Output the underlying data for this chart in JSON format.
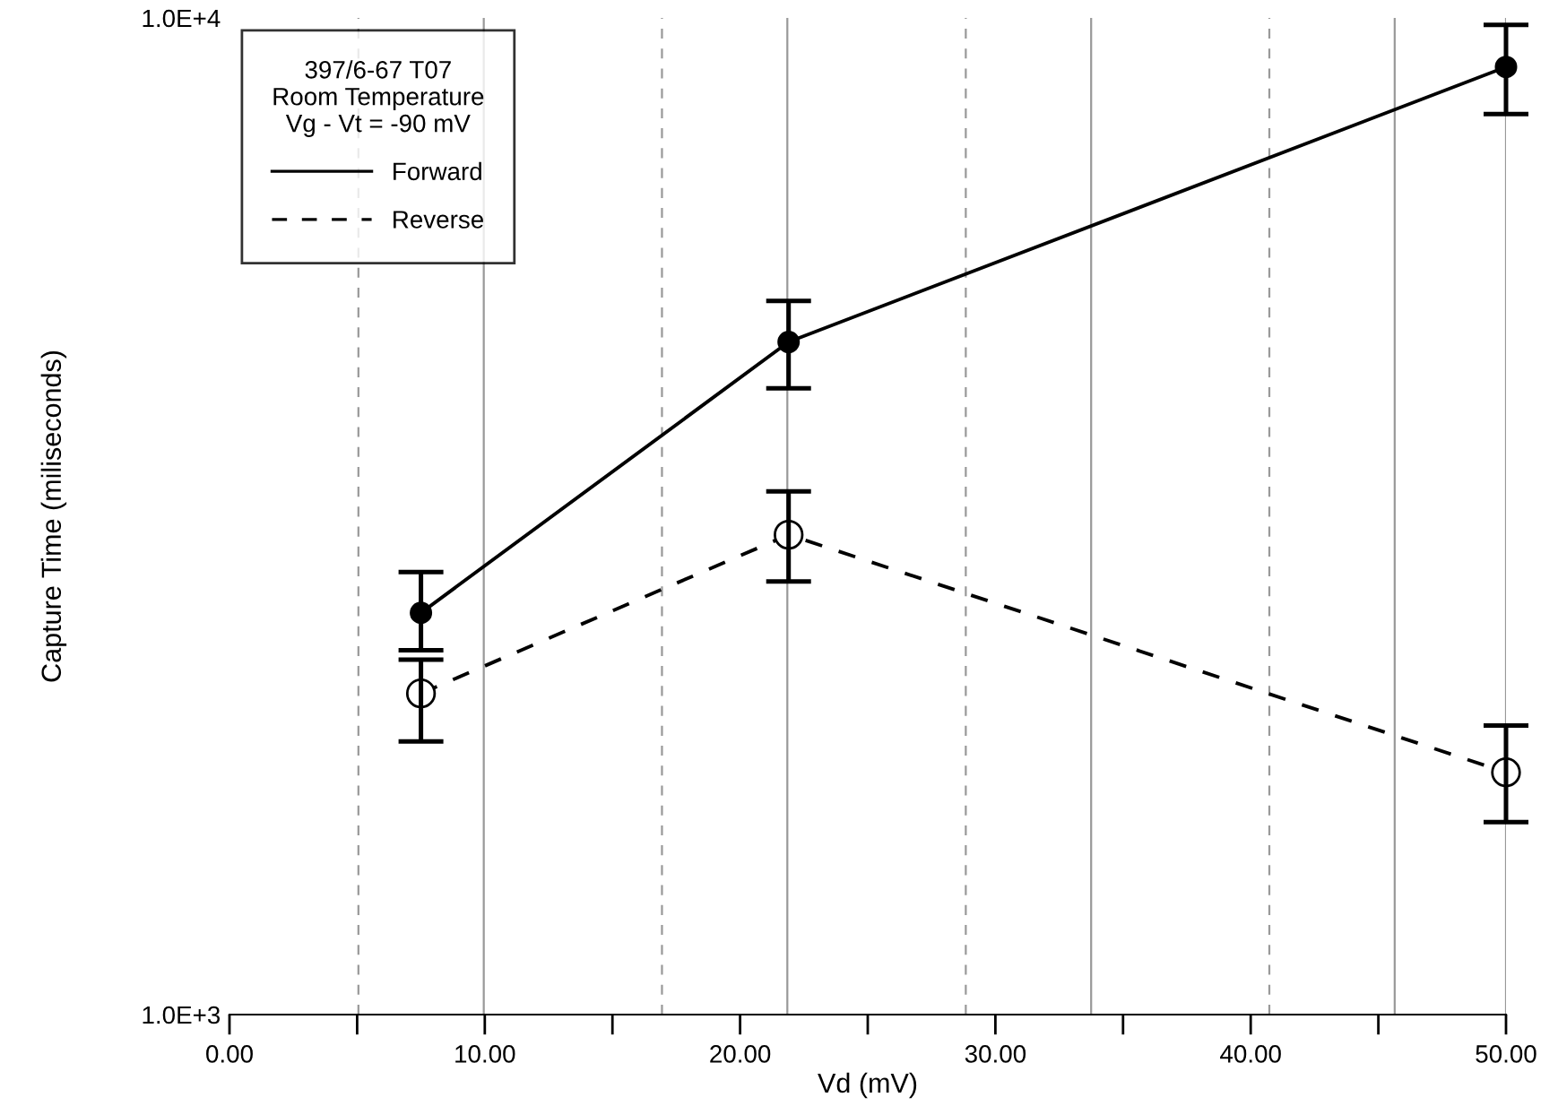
{
  "chart_data": {
    "type": "line",
    "xlabel": "Vd (mV)",
    "ylabel": "Capture Time (miliseconds)",
    "legend_title": "397/6-67 T07\nRoom Temperature\nVg - Vt = -90 mV",
    "legend": "top left",
    "log": "y",
    "marker": "circle",
    "x": [
      7.5,
      21.9,
      50
    ],
    "xlim": [
      0,
      50
    ],
    "xticks": [
      {
        "value": 0,
        "label": "0.00"
      },
      {
        "value": 5,
        "label": null
      },
      {
        "value": 10,
        "label": "10.00"
      },
      {
        "value": 15,
        "label": null
      },
      {
        "value": 20,
        "label": "20.00"
      },
      {
        "value": 25,
        "label": null
      },
      {
        "value": 30,
        "label": "30.00"
      },
      {
        "value": 35,
        "label": null
      },
      {
        "value": 40,
        "label": "40.00"
      },
      {
        "value": 45,
        "label": null
      },
      {
        "value": 50,
        "label": "50.00"
      }
    ],
    "ylim": [
      1000,
      10000
    ],
    "yticks": [
      {
        "value": 1000,
        "label": "1.0E+3"
      },
      {
        "value": 10000,
        "label": "1.0E+4"
      }
    ],
    "series": [
      {
        "name": "Forward",
        "color": "#000000",
        "line_style": "solid",
        "values": [
          2530,
          4730,
          8930
        ],
        "errors": [
          [
            2320,
            2780
          ],
          [
            4250,
            5200
          ],
          [
            8010,
            9840
          ]
        ]
      },
      {
        "name": "Reverse",
        "color": "#000000",
        "line_style": "dashed",
        "values": [
          2100,
          3030,
          1750
        ],
        "errors": [
          [
            1880,
            2270
          ],
          [
            2720,
            3350
          ],
          [
            1560,
            1950
          ]
        ]
      }
    ],
    "ref_lines": [
      {
        "axis": "x",
        "value": 5.05,
        "line_style": "dashed",
        "color": "#999999"
      },
      {
        "axis": "x",
        "value": 9.96,
        "line_style": "solid",
        "color": "#999999"
      },
      {
        "axis": "x",
        "value": 16.94,
        "line_style": "dashed",
        "color": "#999999"
      },
      {
        "axis": "x",
        "value": 21.85,
        "line_style": "solid",
        "color": "#999999"
      },
      {
        "axis": "x",
        "value": 28.84,
        "line_style": "dashed",
        "color": "#999999"
      },
      {
        "axis": "x",
        "value": 33.75,
        "line_style": "solid",
        "color": "#999999"
      },
      {
        "axis": "x",
        "value": 40.73,
        "line_style": "dashed",
        "color": "#999999"
      },
      {
        "axis": "x",
        "value": 45.64,
        "line_style": "solid",
        "color": "#999999"
      },
      {
        "axis": "x",
        "value": 50,
        "line_style": "solid",
        "color": "#999999"
      }
    ]
  }
}
